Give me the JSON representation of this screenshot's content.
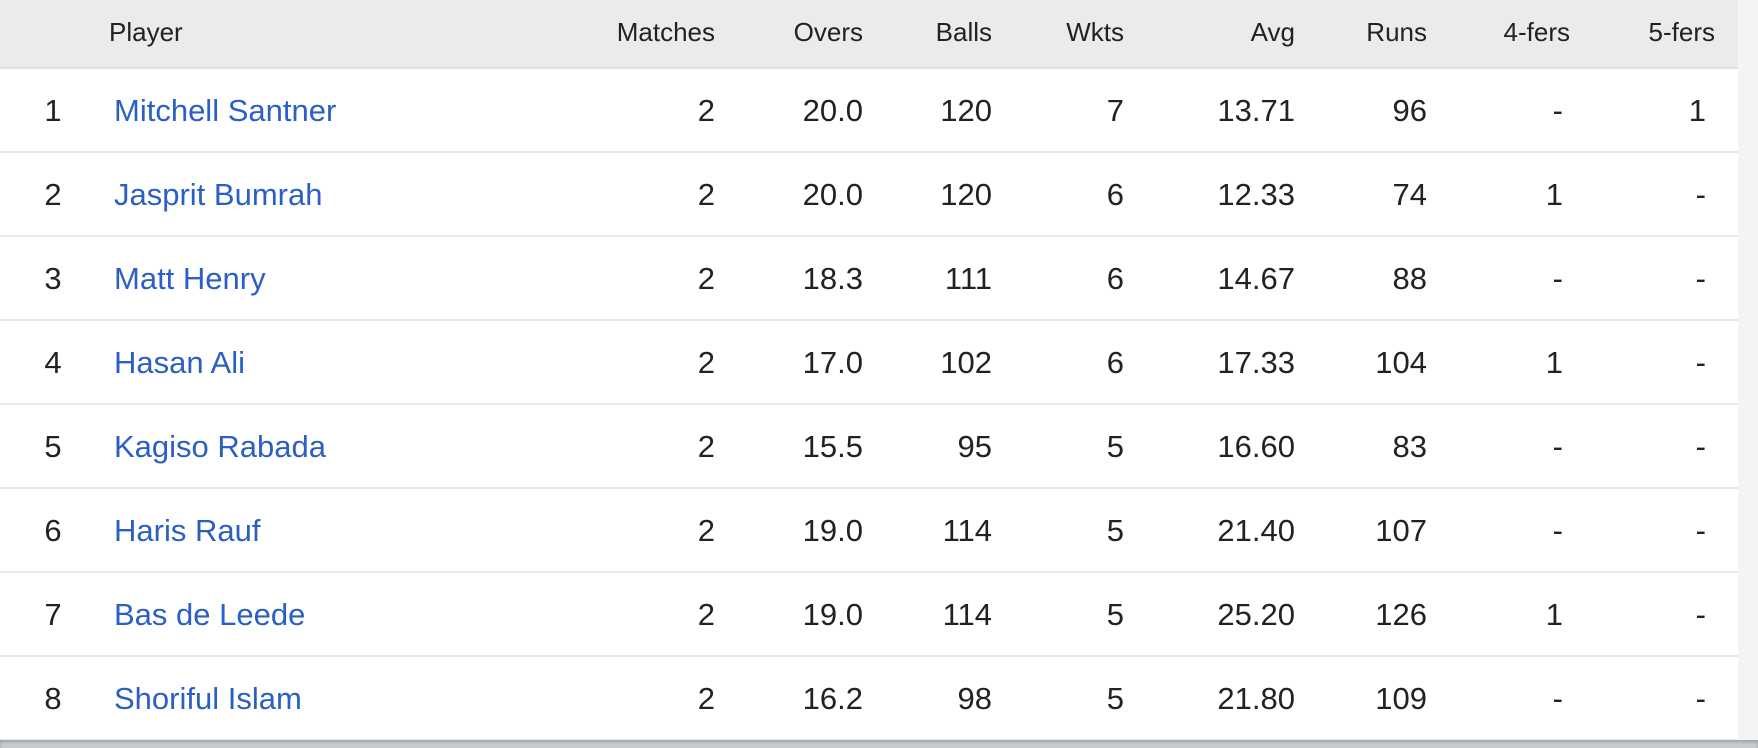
{
  "columns": {
    "player": "Player",
    "matches": "Matches",
    "overs": "Overs",
    "balls": "Balls",
    "wkts": "Wkts",
    "avg": "Avg",
    "runs": "Runs",
    "fours": "4-fers",
    "fives": "5-fers"
  },
  "rows": [
    {
      "rank": "1",
      "player": "Mitchell Santner",
      "matches": "2",
      "overs": "20.0",
      "balls": "120",
      "wkts": "7",
      "avg": "13.71",
      "runs": "96",
      "fours": "-",
      "fives": "1"
    },
    {
      "rank": "2",
      "player": "Jasprit Bumrah",
      "matches": "2",
      "overs": "20.0",
      "balls": "120",
      "wkts": "6",
      "avg": "12.33",
      "runs": "74",
      "fours": "1",
      "fives": "-"
    },
    {
      "rank": "3",
      "player": "Matt Henry",
      "matches": "2",
      "overs": "18.3",
      "balls": "111",
      "wkts": "6",
      "avg": "14.67",
      "runs": "88",
      "fours": "-",
      "fives": "-"
    },
    {
      "rank": "4",
      "player": "Hasan Ali",
      "matches": "2",
      "overs": "17.0",
      "balls": "102",
      "wkts": "6",
      "avg": "17.33",
      "runs": "104",
      "fours": "1",
      "fives": "-"
    },
    {
      "rank": "5",
      "player": "Kagiso Rabada",
      "matches": "2",
      "overs": "15.5",
      "balls": "95",
      "wkts": "5",
      "avg": "16.60",
      "runs": "83",
      "fours": "-",
      "fives": "-"
    },
    {
      "rank": "6",
      "player": "Haris Rauf",
      "matches": "2",
      "overs": "19.0",
      "balls": "114",
      "wkts": "5",
      "avg": "21.40",
      "runs": "107",
      "fours": "-",
      "fives": "-"
    },
    {
      "rank": "7",
      "player": "Bas de Leede",
      "matches": "2",
      "overs": "19.0",
      "balls": "114",
      "wkts": "5",
      "avg": "25.20",
      "runs": "126",
      "fours": "1",
      "fives": "-"
    },
    {
      "rank": "8",
      "player": "Shoriful Islam",
      "matches": "2",
      "overs": "16.2",
      "balls": "98",
      "wkts": "5",
      "avg": "21.80",
      "runs": "109",
      "fours": "-",
      "fives": "-"
    }
  ],
  "colors": {
    "link": "#2b5fc4",
    "header_bg": "#ebebeb"
  }
}
